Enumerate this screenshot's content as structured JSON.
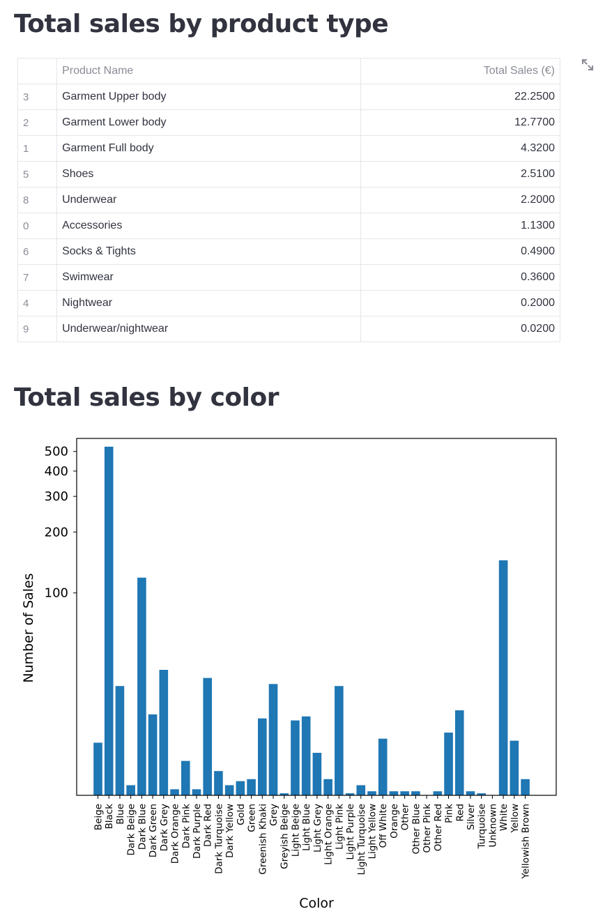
{
  "sections": {
    "product_title": "Total sales by product type",
    "color_title": "Total sales by color"
  },
  "table": {
    "columns": [
      "",
      "Product Name",
      "Total Sales (€)"
    ],
    "rows": [
      {
        "index": "3",
        "name": "Garment Upper body",
        "value": "22.2500"
      },
      {
        "index": "2",
        "name": "Garment Lower body",
        "value": "12.7700"
      },
      {
        "index": "1",
        "name": "Garment Full body",
        "value": "4.3200"
      },
      {
        "index": "5",
        "name": "Shoes",
        "value": "2.5100"
      },
      {
        "index": "8",
        "name": "Underwear",
        "value": "2.2000"
      },
      {
        "index": "0",
        "name": "Accessories",
        "value": "1.1300"
      },
      {
        "index": "6",
        "name": "Socks & Tights",
        "value": "0.4900"
      },
      {
        "index": "7",
        "name": "Swimwear",
        "value": "0.3600"
      },
      {
        "index": "4",
        "name": "Nightwear",
        "value": "0.2000"
      },
      {
        "index": "9",
        "name": "Underwear/nightwear",
        "value": "0.0200"
      }
    ],
    "expand_icon": "expand-icon"
  },
  "chart_data": {
    "type": "bar",
    "title": "",
    "xlabel": "Color",
    "ylabel": "Number of Sales",
    "yscale": "symlog",
    "yticks": [
      100,
      200,
      300,
      400,
      500
    ],
    "ylim": [
      0,
      580
    ],
    "grid": false,
    "bar_color": "#1f77b4",
    "categories": [
      "Beige",
      "Black",
      "Blue",
      "Dark Beige",
      "Dark Blue",
      "Dark Green",
      "Dark Grey",
      "Dark Orange",
      "Dark Pink",
      "Dark Purple",
      "Dark Red",
      "Dark Turquoise",
      "Dark Yellow",
      "Gold",
      "Green",
      "Greenish Khaki",
      "Grey",
      "Greyish Beige",
      "Light Beige",
      "Light Blue",
      "Light Grey",
      "Light Orange",
      "Light Pink",
      "Light Purple",
      "Light Turquoise",
      "Light Yellow",
      "Off White",
      "Orange",
      "Other",
      "Other Blue",
      "Other Pink",
      "Other Red",
      "Pink",
      "Red",
      "Silver",
      "Turquoise",
      "Unknown",
      "White",
      "Yellow",
      "Yellowish Brown"
    ],
    "values": [
      26,
      528,
      54,
      5,
      119,
      40,
      62,
      3,
      17,
      3,
      58,
      12,
      5,
      7,
      8,
      38,
      55,
      1,
      37,
      39,
      21,
      8,
      54,
      1,
      5,
      2,
      28,
      2,
      2,
      2,
      0,
      2,
      31,
      42,
      2,
      1,
      0,
      145,
      27,
      8
    ]
  }
}
